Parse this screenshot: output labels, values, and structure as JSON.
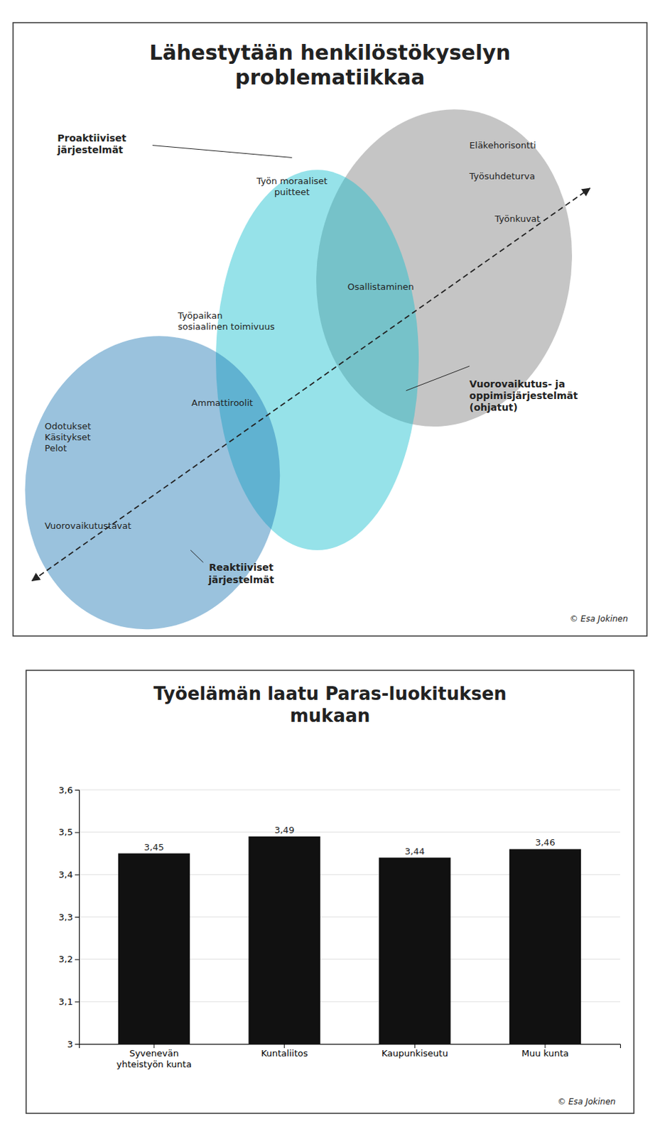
{
  "chart_data": [
    {
      "type": "diagram",
      "title": "Lähestytään henkilöstökyselyn\nproblematiikkaa",
      "annotations": [
        "Proaktiiviset\njärjestelmät",
        "Työn moraaliset\npuitteet",
        "Eläkehorisontti",
        "Työsuhdeturva",
        "Työnkuvat",
        "Osallistaminen",
        "Työpaikan\nsosiaalinen toimivuus",
        "Ammattiroolit",
        "Odotukset\nKäsitykset\nPelot",
        "Vuorovaikutustavat",
        "Vuorovaikutus- ja\noppimisjärjestelmät\n(ohjatut)",
        "Reaktiiviset\njärjestelmät",
        "© Esa Jokinen"
      ]
    },
    {
      "type": "bar",
      "title": "Työelämän laatu Paras-luokituksen\nmukaan",
      "categories": [
        "Syvenevän\nyhteistyön kunta",
        "Kuntaliitos",
        "Kaupunkiseutu",
        "Muu kunta"
      ],
      "values": [
        3.45,
        3.49,
        3.44,
        3.46
      ],
      "value_labels": [
        "3,45",
        "3,49",
        "3,44",
        "3,46"
      ],
      "data_labels": true,
      "color": "#111111",
      "ylim": [
        3.0,
        3.6
      ],
      "yticks": [
        3,
        {
          "value": 3.1,
          "label": "3,1"
        },
        {
          "value": 3.2,
          "label": "3,2"
        },
        {
          "value": 3.3,
          "label": "3,3"
        },
        {
          "value": 3.4,
          "label": "3,4"
        },
        {
          "value": 3.5,
          "label": "3,5"
        },
        {
          "value": 3.6,
          "label": "3,6"
        }
      ],
      "grid": true,
      "annotations": [
        "© Esa Jokinen"
      ]
    }
  ]
}
